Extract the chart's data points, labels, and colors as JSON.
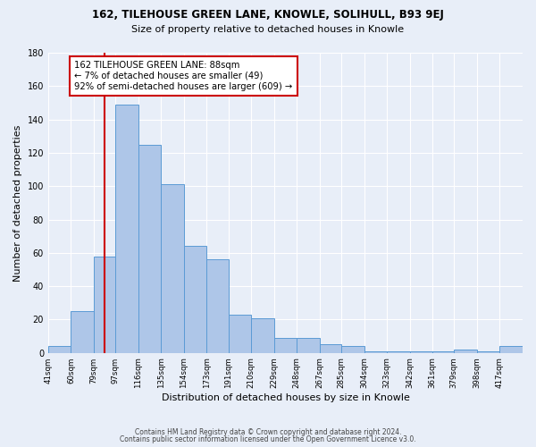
{
  "title": "162, TILEHOUSE GREEN LANE, KNOWLE, SOLIHULL, B93 9EJ",
  "subtitle": "Size of property relative to detached houses in Knowle",
  "xlabel": "Distribution of detached houses by size in Knowle",
  "ylabel": "Number of detached properties",
  "bar_labels": [
    "41sqm",
    "60sqm",
    "79sqm",
    "97sqm",
    "116sqm",
    "135sqm",
    "154sqm",
    "173sqm",
    "191sqm",
    "210sqm",
    "229sqm",
    "248sqm",
    "267sqm",
    "285sqm",
    "304sqm",
    "323sqm",
    "342sqm",
    "361sqm",
    "379sqm",
    "398sqm",
    "417sqm"
  ],
  "bar_values": [
    4,
    25,
    58,
    149,
    125,
    101,
    64,
    56,
    23,
    21,
    9,
    9,
    5,
    4,
    1,
    1,
    1,
    1,
    2,
    1,
    4
  ],
  "bar_color": "#aec6e8",
  "bar_edge_color": "#5b9bd5",
  "vline_x": 88,
  "annotation_line1": "162 TILEHOUSE GREEN LANE: 88sqm",
  "annotation_line2": "← 7% of detached houses are smaller (49)",
  "annotation_line3": "92% of semi-detached houses are larger (609) →",
  "annotation_box_color": "#ffffff",
  "annotation_box_edge_color": "#cc0000",
  "vline_color": "#cc0000",
  "ylim": [
    0,
    180
  ],
  "yticks": [
    0,
    20,
    40,
    60,
    80,
    100,
    120,
    140,
    160,
    180
  ],
  "footer1": "Contains HM Land Registry data © Crown copyright and database right 2024.",
  "footer2": "Contains public sector information licensed under the Open Government Licence v3.0.",
  "bin_edges": [
    41,
    60,
    79,
    97,
    116,
    135,
    154,
    173,
    191,
    210,
    229,
    248,
    267,
    285,
    304,
    323,
    342,
    361,
    379,
    398,
    417,
    436
  ],
  "bg_color": "#e8eef8"
}
